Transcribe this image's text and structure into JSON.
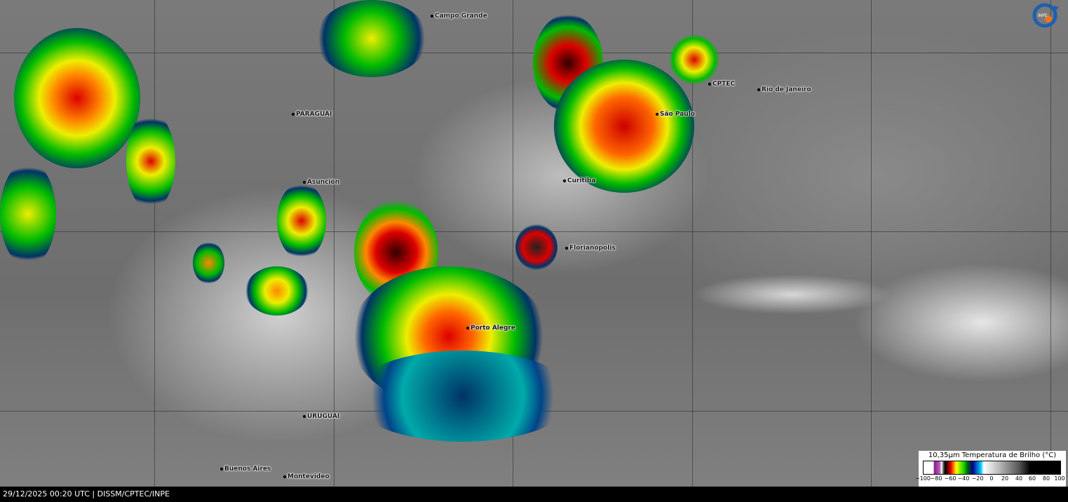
{
  "map": {
    "cities": [
      {
        "name": "Campo Grande"
      },
      {
        "name": "PARAGUAI"
      },
      {
        "name": "Asunción"
      },
      {
        "name": "CPTEC"
      },
      {
        "name": "Rio de Janeiro"
      },
      {
        "name": "São Paulo"
      },
      {
        "name": "Curitiba"
      },
      {
        "name": "Florianópolis"
      },
      {
        "name": "Porto Alegre"
      },
      {
        "name": "URUGUAI"
      },
      {
        "name": "Buenos Aires"
      },
      {
        "name": "Montevideo"
      }
    ]
  },
  "logo": {
    "text": "INPE"
  },
  "legend": {
    "title": "10,35µm Temperatura de Brilho (°C)",
    "ticks": [
      "−100",
      "−80",
      "−60",
      "−40",
      "−20",
      "0",
      "20",
      "40",
      "60",
      "80",
      "100"
    ],
    "range": [
      -100,
      100
    ],
    "colors": [
      "#ffffff",
      "#8a1a8a",
      "#000000",
      "#ee0000",
      "#ffff00",
      "#00cc00",
      "#00008a",
      "#00ccff",
      "#ffffff",
      "#000000"
    ]
  },
  "status": {
    "text": "29/12/2025 00:20 UTC | DISSM/CPTEC/INPE"
  }
}
